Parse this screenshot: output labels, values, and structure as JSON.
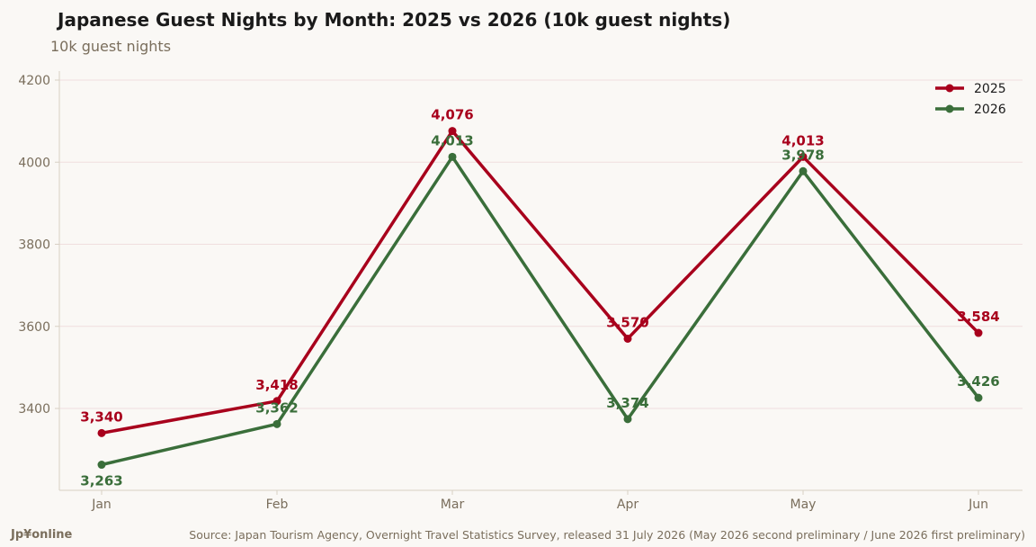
{
  "header": {
    "title": "Japanese Guest Nights by Month: 2025 vs 2026 (10k guest nights)",
    "subtitle": "10k guest nights"
  },
  "footer": {
    "brand": "Jp¥online",
    "source": "Source: Japan Tourism Agency, Overnight Travel Statistics Survey, released 31 July 2026 (May 2026 second preliminary / June 2026 first preliminary)"
  },
  "colors": {
    "series_2025": "#a8001c",
    "series_2026": "#3a6e3a",
    "grid": "#f0dede",
    "axis": "#d8d0c4",
    "text_muted": "#7a6e5c"
  },
  "chart_data": {
    "type": "line",
    "title": "Japanese Guest Nights by Month: 2025 vs 2026 (10k guest nights)",
    "ylabel": "10k guest nights",
    "xlabel": "",
    "categories": [
      "Jan",
      "Feb",
      "Mar",
      "Apr",
      "May",
      "Jun"
    ],
    "ylim": [
      3200,
      4220
    ],
    "yticks": [
      3400,
      3600,
      3800,
      4000,
      4200
    ],
    "grid": "horizontal",
    "legend": "top-right",
    "series": [
      {
        "name": "2025",
        "values": [
          3340,
          3418,
          4076,
          3570,
          4013,
          3584
        ],
        "labels": [
          "3,340",
          "3,418",
          "4,076",
          "3,570",
          "4,013",
          "3,584"
        ]
      },
      {
        "name": "2026",
        "values": [
          3263,
          3362,
          4013,
          3374,
          3978,
          3426
        ],
        "labels": [
          "3,263",
          "3,362",
          "4,013",
          "3,374",
          "3,978",
          "3,426"
        ]
      }
    ]
  }
}
